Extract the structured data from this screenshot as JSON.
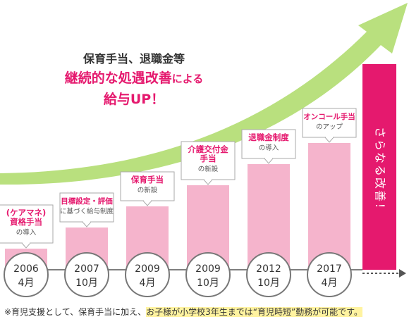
{
  "headline": {
    "line1": "保育手当、退職金等",
    "line2_a": "継続的な",
    "line2_b": "処遇改善",
    "line2_c": "による",
    "line3": "給与UP！"
  },
  "chart_data": {
    "type": "bar",
    "categories": [
      "2006 4月",
      "2007 10月",
      "2009 4月",
      "2009 10月",
      "2012 10月",
      "2017 4月"
    ],
    "values": [
      1,
      2,
      3,
      4,
      5,
      6
    ],
    "ylim": [
      0,
      8
    ],
    "bar_color": "#f5b4cc",
    "arrow_color": "#b9e07e",
    "accent_color": "#e5196e",
    "items": [
      {
        "year": "2006",
        "month": "4月",
        "label_lines": [
          "(ケアマネ)",
          "資格手当"
        ],
        "sub": "の導入"
      },
      {
        "year": "2007",
        "month": "10月",
        "label_lines": [
          "目標設定・評価"
        ],
        "sub": "に基づく給与制度"
      },
      {
        "year": "2009",
        "month": "4月",
        "label_lines": [
          "保育手当"
        ],
        "sub": "の新設"
      },
      {
        "year": "2009",
        "month": "10月",
        "label_lines": [
          "介護交付金",
          "手当"
        ],
        "sub": "の新設"
      },
      {
        "year": "2012",
        "month": "10月",
        "label_lines": [
          "退職金制度"
        ],
        "sub": "の導入"
      },
      {
        "year": "2017",
        "month": "4月",
        "label_lines": [
          "オンコール手当"
        ],
        "sub": "のアップ"
      }
    ],
    "future_label": "さらなる改善！"
  },
  "footnote": {
    "prefix": "※育児支援として、保育手当に加え、",
    "highlight": "お子様が小学校3年生までは“育児時短”勤務が可能です。"
  }
}
